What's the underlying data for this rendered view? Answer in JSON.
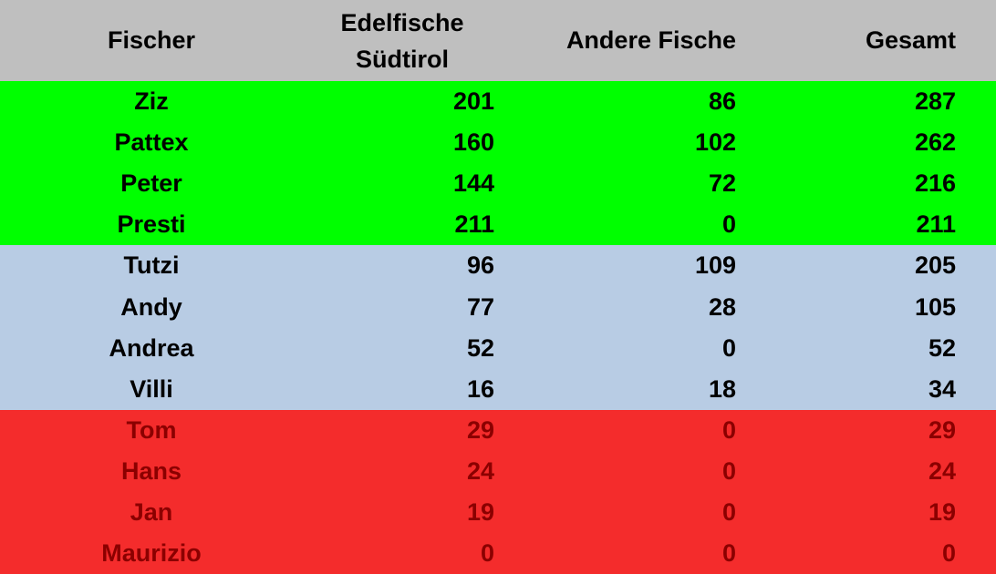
{
  "header": {
    "fischer": "Fischer",
    "edel_line1": "Edelfische",
    "edel_line2": "Südtirol",
    "andere": "Andere Fische",
    "gesamt": "Gesamt"
  },
  "colors": {
    "header_bg": "#bfbfbf",
    "green": "#00ff00",
    "blue": "#b8cce4",
    "red": "#f42c2c",
    "text_dark": "#000000",
    "text_red": "#8b0000"
  },
  "groups": [
    {
      "color": "#00ff00",
      "text_color": "#000000",
      "rows": [
        {
          "name": "Ziz",
          "edel": "201",
          "andere": "86",
          "gesamt": "287"
        },
        {
          "name": "Pattex",
          "edel": "160",
          "andere": "102",
          "gesamt": "262"
        },
        {
          "name": "Peter",
          "edel": "144",
          "andere": "72",
          "gesamt": "216"
        },
        {
          "name": "Presti",
          "edel": "211",
          "andere": "0",
          "gesamt": "211"
        }
      ]
    },
    {
      "color": "#b8cce4",
      "text_color": "#000000",
      "rows": [
        {
          "name": "Tutzi",
          "edel": "96",
          "andere": "109",
          "gesamt": "205"
        },
        {
          "name": "Andy",
          "edel": "77",
          "andere": "28",
          "gesamt": "105"
        },
        {
          "name": "Andrea",
          "edel": "52",
          "andere": "0",
          "gesamt": "52"
        },
        {
          "name": "Villi",
          "edel": "16",
          "andere": "18",
          "gesamt": "34"
        }
      ]
    },
    {
      "color": "#f42c2c",
      "text_color": "#8b0000",
      "rows": [
        {
          "name": "Tom",
          "edel": "29",
          "andere": "0",
          "gesamt": "29"
        },
        {
          "name": "Hans",
          "edel": "24",
          "andere": "0",
          "gesamt": "24"
        },
        {
          "name": "Jan",
          "edel": "19",
          "andere": "0",
          "gesamt": "19"
        },
        {
          "name": "Maurizio",
          "edel": "0",
          "andere": "0",
          "gesamt": "0"
        }
      ]
    }
  ]
}
